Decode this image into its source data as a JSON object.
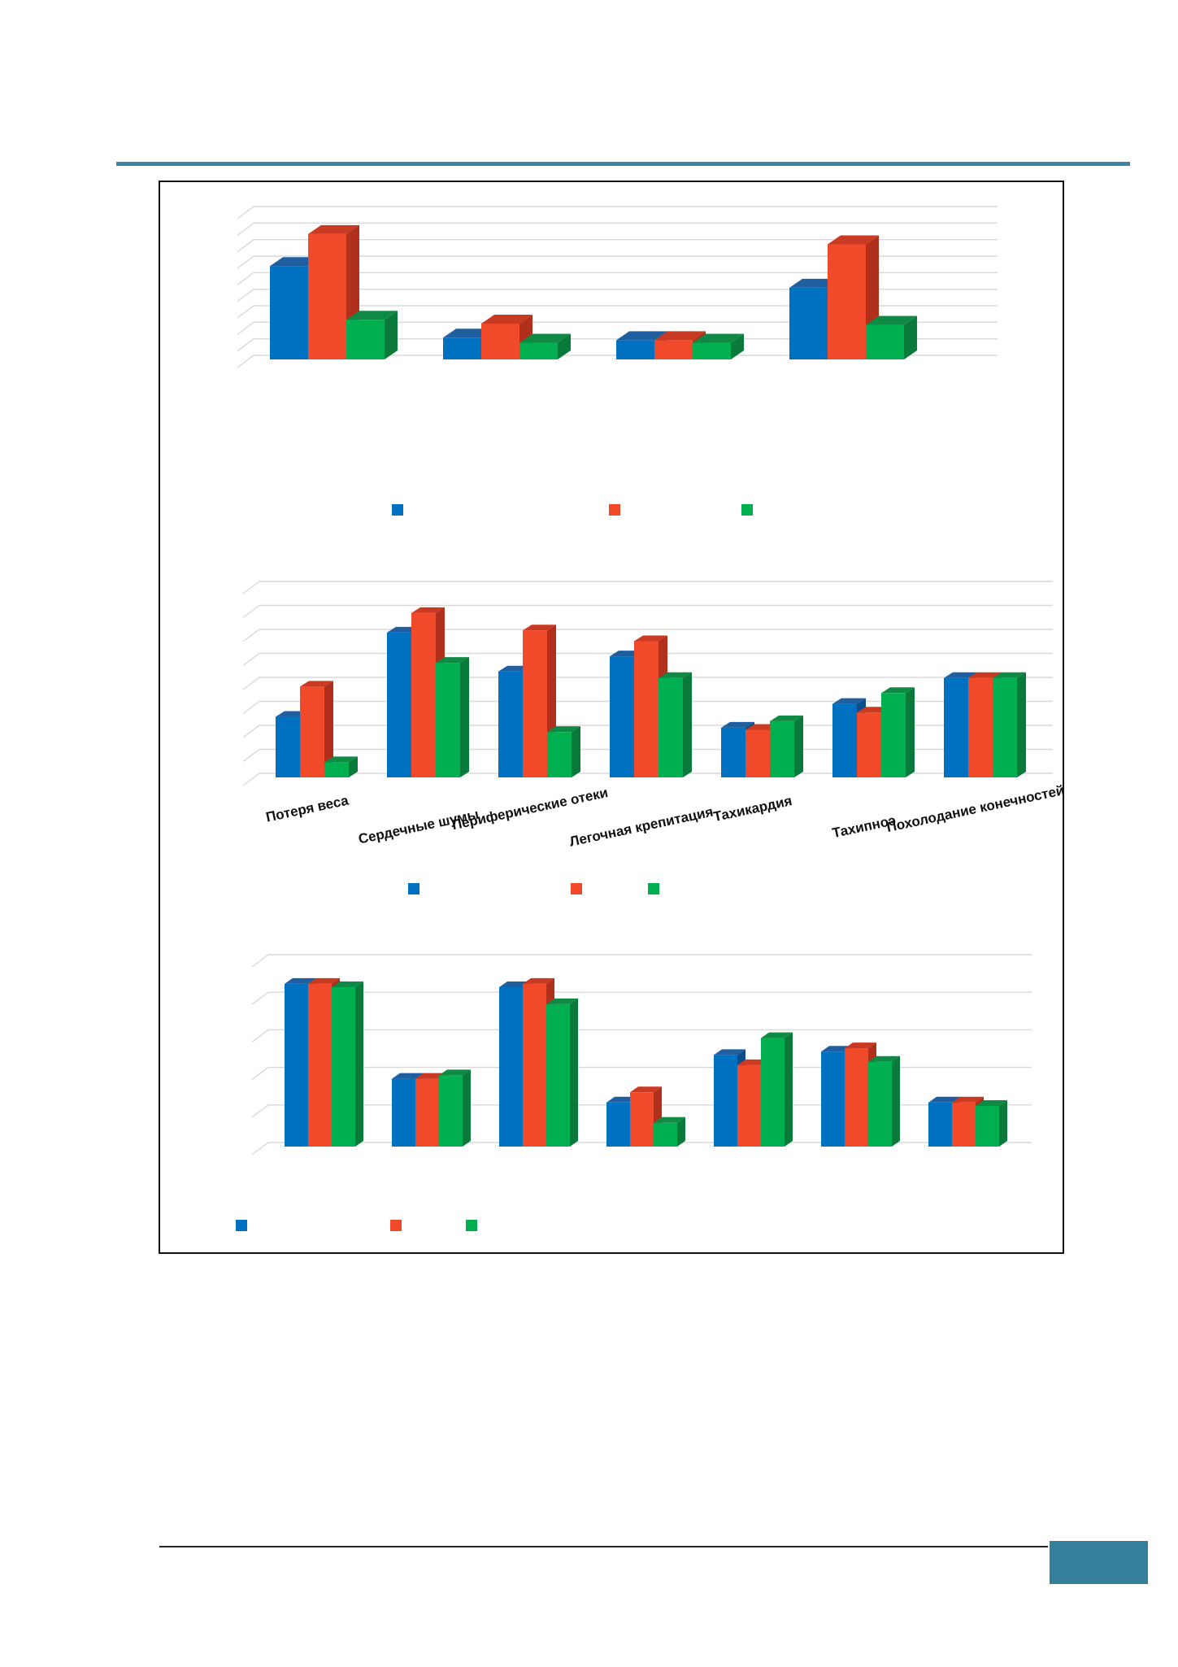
{
  "colors": {
    "series_a": "#0070c0",
    "series_b": "#f04a2a",
    "series_c": "#00b050",
    "accent": "#3d85a2",
    "page_tab": "#337f9c"
  },
  "page": {
    "page_number": ""
  },
  "chart_data": [
    {
      "type": "bar",
      "title": "",
      "categories": [
        "",
        "",
        "",
        ""
      ],
      "series": [
        {
          "values": [
            7.3,
            1.7,
            1.5,
            5.6
          ]
        },
        {
          "values": [
            9.8,
            2.8,
            1.5,
            9.0
          ]
        },
        {
          "values": [
            3.1,
            1.3,
            1.3,
            2.7
          ]
        }
      ],
      "ylim": [
        0,
        11
      ],
      "grid": true,
      "legend": "bottom"
    },
    {
      "type": "bar",
      "title": "",
      "categories": [
        "Потеря веса",
        "Сердечные шумы",
        "Периферические отеки",
        "Легочная крепитация",
        "Тахикардия",
        "Тахипноэ",
        "Похолодание конечностей"
      ],
      "series": [
        {
          "values": [
            2.8,
            6.7,
            4.9,
            5.6,
            2.3,
            3.4,
            4.6
          ]
        },
        {
          "values": [
            4.2,
            7.6,
            6.8,
            6.3,
            2.2,
            3.0,
            4.6
          ]
        },
        {
          "values": [
            0.7,
            5.3,
            2.1,
            4.6,
            2.6,
            3.9,
            4.6
          ]
        }
      ],
      "ylim": [
        0,
        8.5
      ],
      "grid": true,
      "legend": "bottom"
    },
    {
      "type": "bar",
      "title": "",
      "categories": [
        "",
        "",
        "",
        "",
        "",
        "",
        ""
      ],
      "series": [
        {
          "values": [
            4.8,
            2.0,
            4.7,
            1.3,
            2.7,
            2.8,
            1.3
          ]
        },
        {
          "values": [
            4.8,
            2.0,
            4.8,
            1.6,
            2.4,
            2.9,
            1.3
          ]
        },
        {
          "values": [
            4.7,
            2.1,
            4.2,
            0.7,
            3.2,
            2.5,
            1.2
          ]
        }
      ],
      "ylim": [
        0,
        5.3
      ],
      "grid": true,
      "legend": "bottom"
    }
  ]
}
